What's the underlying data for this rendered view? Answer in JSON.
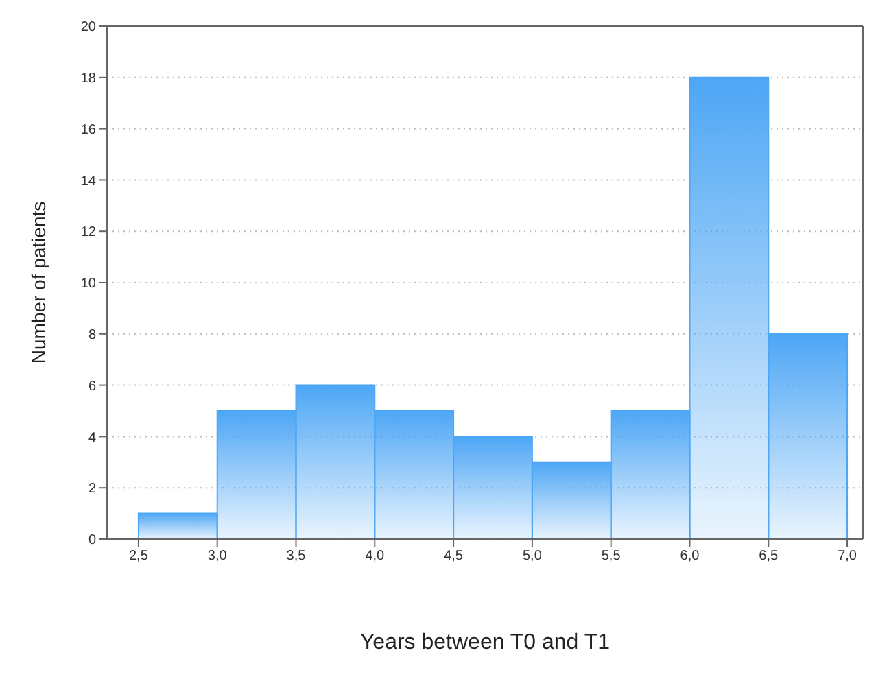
{
  "chart_data": {
    "type": "histogram",
    "xlabel": "Years between T0 and T1",
    "ylabel": "Number of patients",
    "bins": [
      2.5,
      3.0,
      3.5,
      4.0,
      4.5,
      5.0,
      5.5,
      6.0,
      6.5,
      7.0
    ],
    "values": [
      1,
      5,
      6,
      5,
      4,
      3,
      5,
      18,
      8
    ],
    "color": "#4da6f5",
    "xlim": [
      2.3,
      7.1
    ],
    "xticks": [
      {
        "value": 2.5,
        "label": "2,5"
      },
      {
        "value": 3.0,
        "label": "3,0"
      },
      {
        "value": 3.5,
        "label": "3,5"
      },
      {
        "value": 4.0,
        "label": "4,0"
      },
      {
        "value": 4.5,
        "label": "4,5"
      },
      {
        "value": 5.0,
        "label": "5,0"
      },
      {
        "value": 5.5,
        "label": "5,5"
      },
      {
        "value": 6.0,
        "label": "6,0"
      },
      {
        "value": 6.5,
        "label": "6,5"
      },
      {
        "value": 7.0,
        "label": "7,0"
      }
    ],
    "ylim": [
      0,
      20
    ],
    "yticks": [
      0,
      2,
      4,
      6,
      8,
      10,
      12,
      14,
      16,
      18,
      20
    ],
    "grid": "y"
  }
}
